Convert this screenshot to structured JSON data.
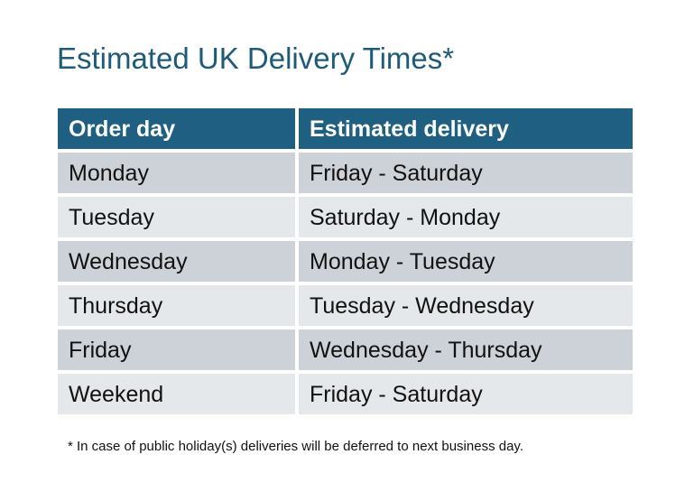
{
  "title": "Estimated UK Delivery Times*",
  "table": {
    "headers": [
      "Order day",
      "Estimated delivery"
    ],
    "rows": [
      [
        "Monday",
        "Friday - Saturday"
      ],
      [
        "Tuesday",
        "Saturday - Monday"
      ],
      [
        "Wednesday",
        "Monday - Tuesday"
      ],
      [
        "Thursday",
        "Tuesday - Wednesday"
      ],
      [
        "Friday",
        "Wednesday - Thursday"
      ],
      [
        "Weekend",
        "Friday - Saturday"
      ]
    ]
  },
  "footnote": "* In case of public holiday(s) deliveries will be deferred to next business day.",
  "colors": {
    "header": "#1f5f82",
    "row_dark": "#cdd1d8",
    "row_light": "#e5e8eb",
    "title": "#1e5a7a"
  }
}
